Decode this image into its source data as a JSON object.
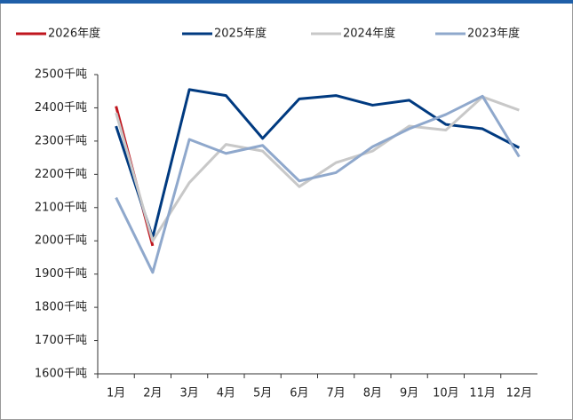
{
  "chart_data": {
    "type": "line",
    "categories": [
      "1月",
      "2月",
      "3月",
      "4月",
      "5月",
      "6月",
      "7月",
      "8月",
      "9月",
      "10月",
      "11月",
      "12月"
    ],
    "series": [
      {
        "name": "2026年度",
        "color": "#c0161e",
        "values": [
          2405,
          1985,
          null,
          null,
          null,
          null,
          null,
          null,
          null,
          null,
          null,
          null
        ]
      },
      {
        "name": "2025年度",
        "color": "#003a80",
        "values": [
          2345,
          2010,
          2455,
          2437,
          2308,
          2427,
          2437,
          2408,
          2423,
          2350,
          2337,
          2280
        ]
      },
      {
        "name": "2024年度",
        "color": "#c8c8c8",
        "values": [
          2385,
          2000,
          2175,
          2290,
          2270,
          2163,
          2235,
          2270,
          2345,
          2333,
          2433,
          2393
        ]
      },
      {
        "name": "2023年度",
        "color": "#8fa8cc",
        "values": [
          2130,
          1905,
          2305,
          2263,
          2287,
          2180,
          2205,
          2283,
          2337,
          2380,
          2435,
          2253
        ]
      }
    ],
    "ylim": [
      1600,
      2500
    ],
    "yticks": [
      {
        "value": 1600,
        "label": "1600千吨"
      },
      {
        "value": 1700,
        "label": "1700千吨"
      },
      {
        "value": 1800,
        "label": "1800千吨"
      },
      {
        "value": 1900,
        "label": "1900千吨"
      },
      {
        "value": 2000,
        "label": "2000千吨"
      },
      {
        "value": 2100,
        "label": "2100千吨"
      },
      {
        "value": 2200,
        "label": "2200千吨"
      },
      {
        "value": 2300,
        "label": "2300千吨"
      },
      {
        "value": 2400,
        "label": "2400千吨"
      },
      {
        "value": 2500,
        "label": "2500千吨"
      }
    ],
    "grid": false,
    "legend": "top"
  }
}
